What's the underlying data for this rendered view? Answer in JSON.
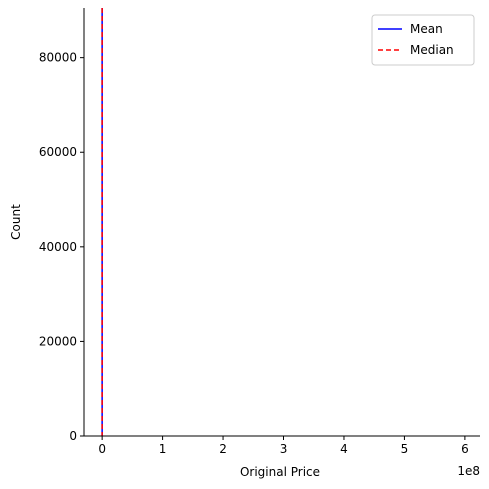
{
  "chart_data": {
    "type": "histogram",
    "xlabel": "Original Price",
    "ylabel": "Count",
    "x_offset_label": "1e8",
    "xlim": [
      -0.3,
      6.25
    ],
    "ylim": [
      0,
      90500
    ],
    "x_ticks": [
      {
        "value": 0,
        "label": "0"
      },
      {
        "value": 1,
        "label": "1"
      },
      {
        "value": 2,
        "label": "2"
      },
      {
        "value": 3,
        "label": "3"
      },
      {
        "value": 4,
        "label": "4"
      },
      {
        "value": 5,
        "label": "5"
      },
      {
        "value": 6,
        "label": "6"
      }
    ],
    "y_ticks": [
      {
        "value": 0,
        "label": "0"
      },
      {
        "value": 20000,
        "label": "20000"
      },
      {
        "value": 40000,
        "label": "40000"
      },
      {
        "value": 60000,
        "label": "60000"
      },
      {
        "value": 80000,
        "label": "80000"
      }
    ],
    "series": [
      {
        "name": "Mean",
        "x": 0,
        "style": "solid",
        "color": "#0000ff"
      },
      {
        "name": "Median",
        "x": 0,
        "style": "dashed",
        "color": "#ff0000"
      }
    ],
    "legend": {
      "position": "top-right"
    },
    "grid": false
  }
}
